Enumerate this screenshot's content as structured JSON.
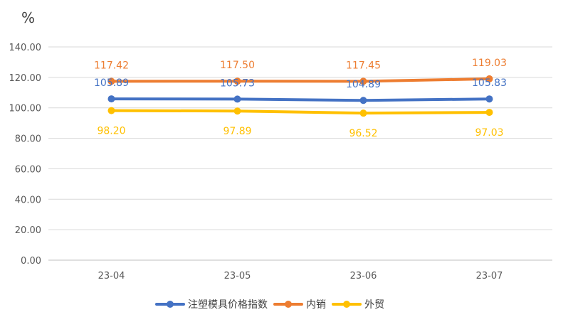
{
  "chart_data": {
    "type": "line",
    "unit_label": "%",
    "categories": [
      "23-04",
      "23-05",
      "23-06",
      "23-07"
    ],
    "ylim": [
      0,
      140
    ],
    "yticks": [
      "0.00",
      "20.00",
      "40.00",
      "60.00",
      "80.00",
      "100.00",
      "120.00",
      "140.00"
    ],
    "grid": true,
    "legend_position": "bottom",
    "series": [
      {
        "name": "注塑模具价格指数",
        "values": [
          105.89,
          105.73,
          104.89,
          105.83
        ],
        "labels": [
          "105.89",
          "105.73",
          "104.89",
          "105.83"
        ],
        "color": "#4472C4",
        "label_position": "above"
      },
      {
        "name": "内销",
        "values": [
          117.42,
          117.5,
          117.45,
          119.03
        ],
        "labels": [
          "117.42",
          "117.50",
          "117.45",
          "119.03"
        ],
        "color": "#ED7D31",
        "label_position": "above"
      },
      {
        "name": "外贸",
        "values": [
          98.2,
          97.89,
          96.52,
          97.03
        ],
        "labels": [
          "98.20",
          "97.89",
          "96.52",
          "97.03"
        ],
        "color": "#FFC000",
        "label_position": "below"
      }
    ]
  }
}
